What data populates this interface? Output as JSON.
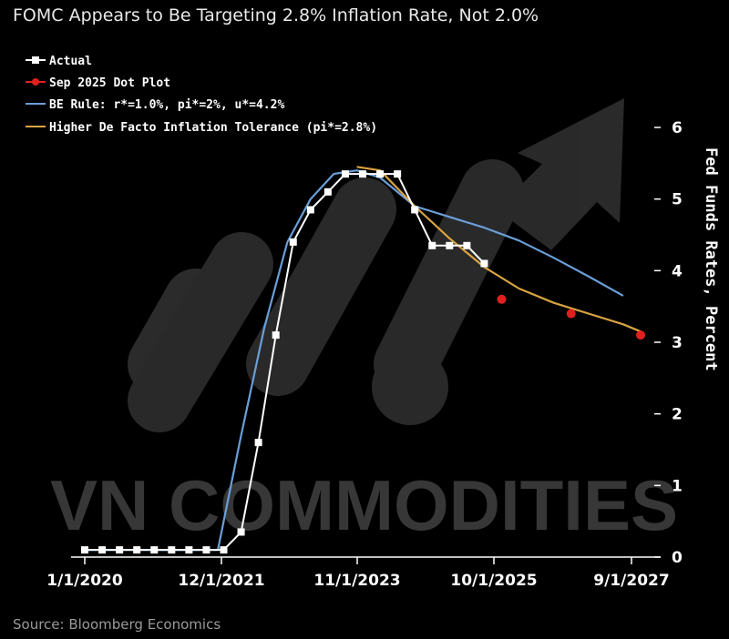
{
  "title": "FOMC Appears to Be Targeting 2.8% Inflation Rate, Not 2.0%",
  "source": "Source: Bloomberg Economics",
  "watermark": "VN COMMODITIES",
  "colors": {
    "actual": "#ffffff",
    "dot_plot": "#e02020",
    "be_rule": "#6a9fd8",
    "tolerance": "#d9a441",
    "watermark": "#3a3a3a"
  },
  "chart_data": {
    "type": "line",
    "title": "FOMC Appears to Be Targeting 2.8% Inflation Rate, Not 2.0%",
    "ylabel": "Fed Funds Rates, Percent",
    "xlabel": "",
    "ylim": [
      0,
      6
    ],
    "yticks": [
      "0",
      "1",
      "2",
      "3",
      "4",
      "5",
      "6"
    ],
    "xticks": [
      "1/1/2020",
      "12/1/2021",
      "11/1/2023",
      "10/1/2025",
      "9/1/2027"
    ],
    "legend_position": "top-left",
    "grid": false,
    "series": [
      {
        "name": "Actual",
        "style": "line-square",
        "points": [
          [
            "2020-01",
            0.1
          ],
          [
            "2020-04",
            0.1
          ],
          [
            "2020-07",
            0.1
          ],
          [
            "2020-10",
            0.1
          ],
          [
            "2021-01",
            0.1
          ],
          [
            "2021-04",
            0.1
          ],
          [
            "2021-07",
            0.1
          ],
          [
            "2021-10",
            0.1
          ],
          [
            "2022-01",
            0.1
          ],
          [
            "2022-04",
            0.35
          ],
          [
            "2022-07",
            1.6
          ],
          [
            "2022-10",
            3.1
          ],
          [
            "2023-01",
            4.4
          ],
          [
            "2023-04",
            4.85
          ],
          [
            "2023-07",
            5.1
          ],
          [
            "2023-10",
            5.35
          ],
          [
            "2024-01",
            5.35
          ],
          [
            "2024-04",
            5.35
          ],
          [
            "2024-07",
            5.35
          ],
          [
            "2024-10",
            4.85
          ],
          [
            "2025-01",
            4.35
          ],
          [
            "2025-04",
            4.35
          ],
          [
            "2025-07",
            4.35
          ],
          [
            "2025-10",
            4.1
          ]
        ]
      },
      {
        "name": "Sep 2025 Dot Plot",
        "style": "dots",
        "points": [
          [
            "2026-01",
            3.6
          ],
          [
            "2027-01",
            3.4
          ],
          [
            "2028-01",
            3.1
          ]
        ]
      },
      {
        "name": "BE Rule: r*=1.0%, pi*=2%, u*=4.2%",
        "style": "line",
        "points": [
          [
            "2020-01",
            0.1
          ],
          [
            "2021-01",
            0.1
          ],
          [
            "2021-12",
            0.1
          ],
          [
            "2022-04",
            1.7
          ],
          [
            "2022-08",
            3.2
          ],
          [
            "2022-12",
            4.4
          ],
          [
            "2023-04",
            5.0
          ],
          [
            "2023-08",
            5.35
          ],
          [
            "2023-12",
            5.4
          ],
          [
            "2024-04",
            5.3
          ],
          [
            "2024-10",
            4.9
          ],
          [
            "2025-04",
            4.75
          ],
          [
            "2025-10",
            4.6
          ],
          [
            "2026-04",
            4.42
          ],
          [
            "2026-10",
            4.18
          ],
          [
            "2027-04",
            3.92
          ],
          [
            "2027-10",
            3.65
          ]
        ]
      },
      {
        "name": "Higher De Facto Inflation Tolerance (pi*=2.8%)",
        "style": "line",
        "points": [
          [
            "2023-12",
            5.45
          ],
          [
            "2024-04",
            5.4
          ],
          [
            "2024-10",
            4.9
          ],
          [
            "2025-04",
            4.45
          ],
          [
            "2025-10",
            4.05
          ],
          [
            "2026-04",
            3.75
          ],
          [
            "2026-10",
            3.55
          ],
          [
            "2027-04",
            3.4
          ],
          [
            "2027-10",
            3.25
          ],
          [
            "2028-01",
            3.15
          ]
        ]
      }
    ]
  }
}
